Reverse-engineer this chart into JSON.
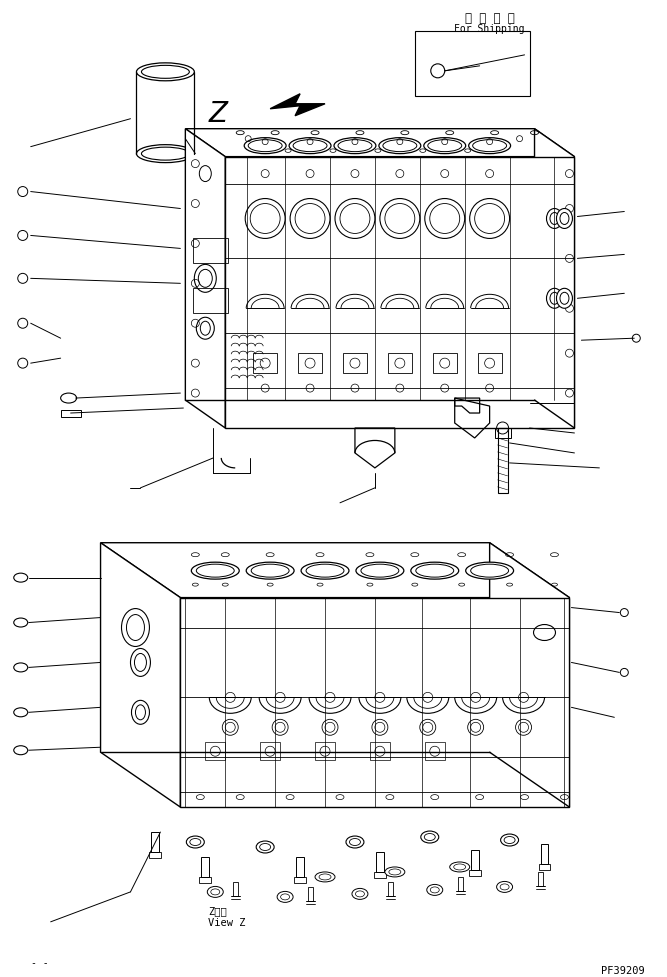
{
  "bg_color": "#ffffff",
  "line_color": "#000000",
  "fig_width": 6.67,
  "fig_height": 9.78,
  "title_jp": "運 搬 部 品",
  "title_en": "For Shipping",
  "bottom_label_jp": "Z　視",
  "bottom_label_en": "View Z",
  "part_number": "PF39209",
  "z_label": "Z"
}
